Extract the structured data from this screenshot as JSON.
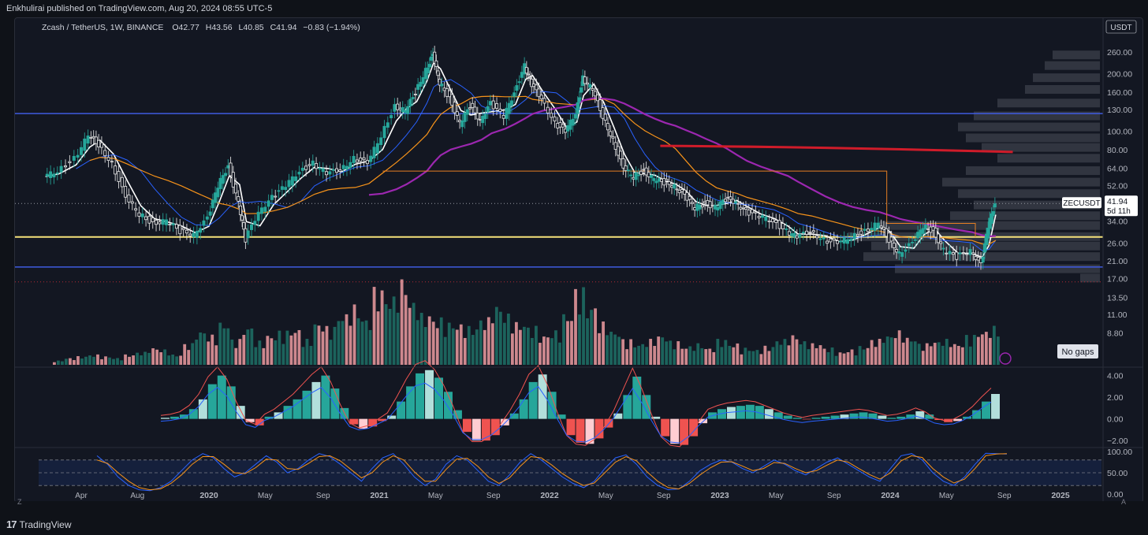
{
  "header": {
    "published": "Enkhulirai published on TradingView.com, Aug 20, 2024 08:55 UTC-5"
  },
  "footer": {
    "brand": "TradingView",
    "left_btn": "Z",
    "right_btn": "A"
  },
  "chart_data": {
    "type": "candlestick",
    "title": "Zcash / TetherUS, 1W, BINANCE",
    "ohlc_legend": {
      "o": "O42.77",
      "h": "H43.56",
      "l": "L40.85",
      "c": "C41.94",
      "chg": "−0.83 (−1.94%)"
    },
    "currency": "USDT",
    "y_scale": "log",
    "y_ticks": [
      "260.00",
      "200.00",
      "160.00",
      "130.00",
      "100.00",
      "80.00",
      "64.00",
      "52.00",
      "41.94",
      "34.00",
      "26.00",
      "21.00",
      "17.00",
      "13.50",
      "11.00",
      "8.80"
    ],
    "y_tick_values": [
      260,
      200,
      160,
      130,
      100,
      80,
      64,
      52,
      41.94,
      34,
      26,
      21,
      17,
      13.5,
      11,
      8.8
    ],
    "x_ticks": [
      "Apr",
      "Aug",
      "2020",
      "May",
      "Sep",
      "2021",
      "May",
      "Sep",
      "2022",
      "May",
      "Sep",
      "2023",
      "May",
      "Sep",
      "2024",
      "May",
      "Sep",
      "2025"
    ],
    "x_tick_dates": [
      2019.25,
      2019.58,
      2020.0,
      2020.33,
      2020.67,
      2021.0,
      2021.33,
      2021.67,
      2022.0,
      2022.33,
      2022.67,
      2023.0,
      2023.33,
      2023.67,
      2024.0,
      2024.33,
      2024.67,
      2025.0
    ],
    "price_label": {
      "symbol": "ZECUSDT",
      "price": "41.94",
      "countdown": "5d 11h"
    },
    "no_gaps_label": "No gaps",
    "horizontal_levels": [
      {
        "name": "resistance-blue",
        "price": 124,
        "color": "#3f5be0"
      },
      {
        "name": "support-yellow",
        "price": 28,
        "color": "#f5e27a"
      },
      {
        "name": "support-blue",
        "price": 19.5,
        "color": "#3f5be0"
      }
    ],
    "close_series": [
      {
        "t": 2019.04,
        "c": 58
      },
      {
        "t": 2019.12,
        "c": 62
      },
      {
        "t": 2019.22,
        "c": 72
      },
      {
        "t": 2019.3,
        "c": 95
      },
      {
        "t": 2019.36,
        "c": 85
      },
      {
        "t": 2019.44,
        "c": 68
      },
      {
        "t": 2019.52,
        "c": 45
      },
      {
        "t": 2019.6,
        "c": 37
      },
      {
        "t": 2019.68,
        "c": 33
      },
      {
        "t": 2019.76,
        "c": 34
      },
      {
        "t": 2019.84,
        "c": 30
      },
      {
        "t": 2019.92,
        "c": 29
      },
      {
        "t": 2020.0,
        "c": 35
      },
      {
        "t": 2020.06,
        "c": 52
      },
      {
        "t": 2020.12,
        "c": 66
      },
      {
        "t": 2020.18,
        "c": 42
      },
      {
        "t": 2020.22,
        "c": 27
      },
      {
        "t": 2020.3,
        "c": 38
      },
      {
        "t": 2020.38,
        "c": 45
      },
      {
        "t": 2020.46,
        "c": 52
      },
      {
        "t": 2020.54,
        "c": 62
      },
      {
        "t": 2020.62,
        "c": 68
      },
      {
        "t": 2020.7,
        "c": 60
      },
      {
        "t": 2020.78,
        "c": 63
      },
      {
        "t": 2020.86,
        "c": 72
      },
      {
        "t": 2020.94,
        "c": 68
      },
      {
        "t": 2021.02,
        "c": 95
      },
      {
        "t": 2021.1,
        "c": 135
      },
      {
        "t": 2021.16,
        "c": 128
      },
      {
        "t": 2021.22,
        "c": 160
      },
      {
        "t": 2021.28,
        "c": 210
      },
      {
        "t": 2021.32,
        "c": 250
      },
      {
        "t": 2021.36,
        "c": 180
      },
      {
        "t": 2021.42,
        "c": 150
      },
      {
        "t": 2021.48,
        "c": 110
      },
      {
        "t": 2021.54,
        "c": 135
      },
      {
        "t": 2021.6,
        "c": 115
      },
      {
        "t": 2021.66,
        "c": 140
      },
      {
        "t": 2021.74,
        "c": 120
      },
      {
        "t": 2021.8,
        "c": 160
      },
      {
        "t": 2021.86,
        "c": 220
      },
      {
        "t": 2021.9,
        "c": 175
      },
      {
        "t": 2021.96,
        "c": 150
      },
      {
        "t": 2022.04,
        "c": 110
      },
      {
        "t": 2022.1,
        "c": 100
      },
      {
        "t": 2022.16,
        "c": 125
      },
      {
        "t": 2022.2,
        "c": 190
      },
      {
        "t": 2022.26,
        "c": 165
      },
      {
        "t": 2022.32,
        "c": 120
      },
      {
        "t": 2022.38,
        "c": 90
      },
      {
        "t": 2022.44,
        "c": 64
      },
      {
        "t": 2022.5,
        "c": 58
      },
      {
        "t": 2022.56,
        "c": 62
      },
      {
        "t": 2022.62,
        "c": 56
      },
      {
        "t": 2022.68,
        "c": 54
      },
      {
        "t": 2022.74,
        "c": 52
      },
      {
        "t": 2022.8,
        "c": 46
      },
      {
        "t": 2022.86,
        "c": 40
      },
      {
        "t": 2022.92,
        "c": 42
      },
      {
        "t": 2022.98,
        "c": 40
      },
      {
        "t": 2023.04,
        "c": 44
      },
      {
        "t": 2023.1,
        "c": 43
      },
      {
        "t": 2023.16,
        "c": 38
      },
      {
        "t": 2023.24,
        "c": 36
      },
      {
        "t": 2023.32,
        "c": 34
      },
      {
        "t": 2023.4,
        "c": 30
      },
      {
        "t": 2023.46,
        "c": 28
      },
      {
        "t": 2023.54,
        "c": 30
      },
      {
        "t": 2023.62,
        "c": 27
      },
      {
        "t": 2023.7,
        "c": 26
      },
      {
        "t": 2023.78,
        "c": 28
      },
      {
        "t": 2023.86,
        "c": 30
      },
      {
        "t": 2023.94,
        "c": 33
      },
      {
        "t": 2024.0,
        "c": 27
      },
      {
        "t": 2024.06,
        "c": 23
      },
      {
        "t": 2024.14,
        "c": 26
      },
      {
        "t": 2024.2,
        "c": 32
      },
      {
        "t": 2024.26,
        "c": 30
      },
      {
        "t": 2024.32,
        "c": 24
      },
      {
        "t": 2024.4,
        "c": 22
      },
      {
        "t": 2024.48,
        "c": 24
      },
      {
        "t": 2024.54,
        "c": 20
      },
      {
        "t": 2024.58,
        "c": 32
      },
      {
        "t": 2024.62,
        "c": 41.94
      }
    ],
    "volume_relative": [
      0.05,
      0.08,
      0.1,
      0.12,
      0.1,
      0.08,
      0.12,
      0.15,
      0.2,
      0.18,
      0.12,
      0.25,
      0.4,
      0.35,
      0.5,
      0.3,
      0.45,
      0.28,
      0.35,
      0.4,
      0.42,
      0.3,
      0.5,
      0.45,
      0.6,
      0.7,
      0.55,
      0.9,
      0.8,
      1.0,
      0.75,
      0.6,
      0.55,
      0.5,
      0.48,
      0.45,
      0.55,
      0.7,
      0.6,
      0.5,
      0.45,
      0.35,
      0.4,
      0.6,
      0.9,
      0.7,
      0.5,
      0.4,
      0.3,
      0.25,
      0.3,
      0.35,
      0.28,
      0.22,
      0.25,
      0.2,
      0.3,
      0.25,
      0.2,
      0.18,
      0.22,
      0.3,
      0.35,
      0.28,
      0.25,
      0.2,
      0.15,
      0.18,
      0.22,
      0.3,
      0.35,
      0.4,
      0.32,
      0.25,
      0.28,
      0.3,
      0.25,
      0.35,
      0.4,
      0.45
    ],
    "macd": {
      "y_ticks": [
        "4.00",
        "2.00",
        "0.00",
        "−2.00"
      ],
      "y_tick_values": [
        4,
        2,
        0,
        -2
      ],
      "histogram": [
        0.1,
        0.2,
        0.4,
        0.9,
        1.8,
        3.2,
        4.0,
        3.0,
        1.2,
        -0.3,
        -0.6,
        0.2,
        0.6,
        1.2,
        1.8,
        2.6,
        3.4,
        4.0,
        2.8,
        1.0,
        -0.5,
        -0.9,
        -0.7,
        -0.2,
        0.3,
        1.6,
        3.0,
        4.2,
        4.5,
        3.8,
        2.5,
        0.8,
        -1.2,
        -2.0,
        -2.0,
        -1.5,
        -0.6,
        0.5,
        1.8,
        3.4,
        4.1,
        2.5,
        0.4,
        -1.5,
        -2.2,
        -2.3,
        -1.8,
        -0.8,
        0.5,
        2.2,
        3.9,
        2.2,
        0.2,
        -1.6,
        -2.3,
        -2.4,
        -1.6,
        -0.4,
        0.6,
        0.9,
        1.1,
        1.2,
        1.3,
        1.2,
        0.9,
        0.6,
        0.3,
        0.1,
        -0.05,
        0.1,
        0.2,
        0.3,
        0.4,
        0.5,
        0.6,
        0.5,
        0.3,
        0.1,
        0.2,
        0.4,
        0.7,
        0.4,
        -0.1,
        -0.3,
        -0.2,
        0.2,
        0.8,
        1.6,
        2.3
      ]
    },
    "stoch_rsi": {
      "y_ticks": [
        "100.00",
        "50.00",
        "0.00"
      ],
      "y_tick_values": [
        100,
        50,
        0
      ],
      "k": [
        90,
        70,
        40,
        20,
        10,
        8,
        15,
        30,
        55,
        80,
        95,
        85,
        60,
        40,
        50,
        70,
        90,
        75,
        50,
        60,
        80,
        95,
        88,
        70,
        50,
        30,
        60,
        85,
        95,
        70,
        40,
        20,
        35,
        70,
        90,
        80,
        55,
        30,
        20,
        45,
        75,
        95,
        80,
        60,
        40,
        25,
        15,
        30,
        60,
        85,
        92,
        70,
        40,
        20,
        10,
        12,
        30,
        55,
        70,
        80,
        75,
        60,
        50,
        65,
        80,
        70,
        55,
        45,
        60,
        75,
        85,
        70,
        55,
        40,
        30,
        60,
        90,
        95,
        80,
        50,
        30,
        20,
        40,
        70,
        96,
        95,
        94
      ],
      "d": [
        80,
        72,
        50,
        30,
        15,
        10,
        12,
        25,
        45,
        70,
        88,
        88,
        70,
        50,
        48,
        62,
        82,
        80,
        60,
        58,
        72,
        88,
        90,
        78,
        58,
        38,
        50,
        75,
        90,
        80,
        52,
        30,
        30,
        58,
        82,
        84,
        65,
        40,
        25,
        38,
        65,
        88,
        85,
        68,
        48,
        32,
        20,
        26,
        50,
        75,
        88,
        78,
        52,
        30,
        15,
        12,
        25,
        45,
        62,
        75,
        76,
        66,
        55,
        60,
        74,
        72,
        60,
        50,
        55,
        68,
        80,
        75,
        60,
        46,
        35,
        50,
        78,
        90,
        86,
        60,
        40,
        26,
        35,
        60,
        90,
        94,
        95
      ]
    }
  }
}
